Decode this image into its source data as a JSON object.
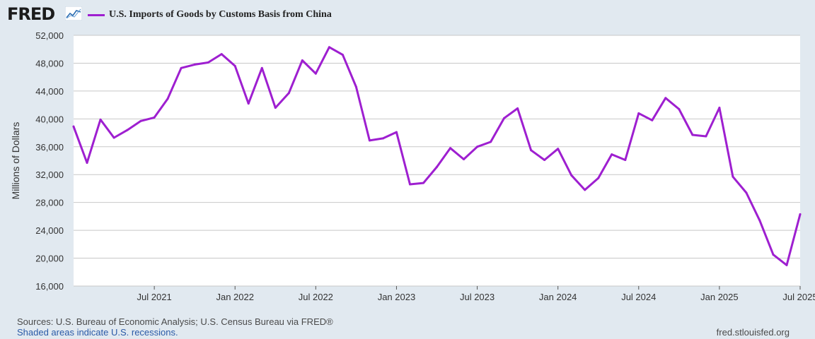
{
  "header": {
    "logo_text": "FRED",
    "logo_icon": "trend-line-icon"
  },
  "colors": {
    "series": "#9e1fd0",
    "plot_bg": "#ffffff",
    "page_bg": "#e1e9f0",
    "grid": "#c8c8c8"
  },
  "footer": {
    "sources": "Sources: U.S. Bureau of Economic Analysis; U.S. Census Bureau via FRED®",
    "recessions": "Shaded areas indicate U.S. recessions.",
    "url": "fred.stlouisfed.org"
  },
  "chart_data": {
    "type": "line",
    "title": "",
    "xlabel": "",
    "ylabel": "Millions of Dollars",
    "ylim": [
      16000,
      52000
    ],
    "yticks": [
      "16,000",
      "20,000",
      "24,000",
      "28,000",
      "32,000",
      "36,000",
      "40,000",
      "44,000",
      "48,000",
      "52,000"
    ],
    "xtick_labels": [
      "Jul 2021",
      "Jan 2022",
      "Jul 2022",
      "Jan 2023",
      "Jul 2023",
      "Jan 2024",
      "Jul 2024",
      "Jan 2025",
      "Jul 2025"
    ],
    "grid": true,
    "legend_position": "top-left",
    "series": [
      {
        "name": "U.S. Imports of Goods by Customs Basis from China",
        "x": [
          "2021-01",
          "2021-02",
          "2021-03",
          "2021-04",
          "2021-05",
          "2021-06",
          "2021-07",
          "2021-08",
          "2021-09",
          "2021-10",
          "2021-11",
          "2021-12",
          "2022-01",
          "2022-02",
          "2022-03",
          "2022-04",
          "2022-05",
          "2022-06",
          "2022-07",
          "2022-08",
          "2022-09",
          "2022-10",
          "2022-11",
          "2022-12",
          "2023-01",
          "2023-02",
          "2023-03",
          "2023-04",
          "2023-05",
          "2023-06",
          "2023-07",
          "2023-08",
          "2023-09",
          "2023-10",
          "2023-11",
          "2023-12",
          "2024-01",
          "2024-02",
          "2024-03",
          "2024-04",
          "2024-05",
          "2024-06",
          "2024-07",
          "2024-08",
          "2024-09",
          "2024-10",
          "2024-11",
          "2024-12",
          "2025-01",
          "2025-02",
          "2025-03",
          "2025-04",
          "2025-05",
          "2025-06",
          "2025-07"
        ],
        "values": [
          38900,
          33700,
          39900,
          37300,
          38400,
          39700,
          40200,
          42900,
          47300,
          47800,
          48100,
          49300,
          47600,
          42200,
          47300,
          41600,
          43700,
          48400,
          46500,
          50300,
          49200,
          44600,
          36900,
          37200,
          38100,
          30600,
          30800,
          33100,
          35800,
          34200,
          36000,
          36700,
          40100,
          41500,
          35500,
          34100,
          35700,
          31900,
          29800,
          31500,
          34900,
          34100,
          40800,
          39800,
          43000,
          41400,
          37700,
          37500,
          41600,
          31700,
          29400,
          25400,
          20500,
          19000,
          26300
        ]
      }
    ]
  }
}
